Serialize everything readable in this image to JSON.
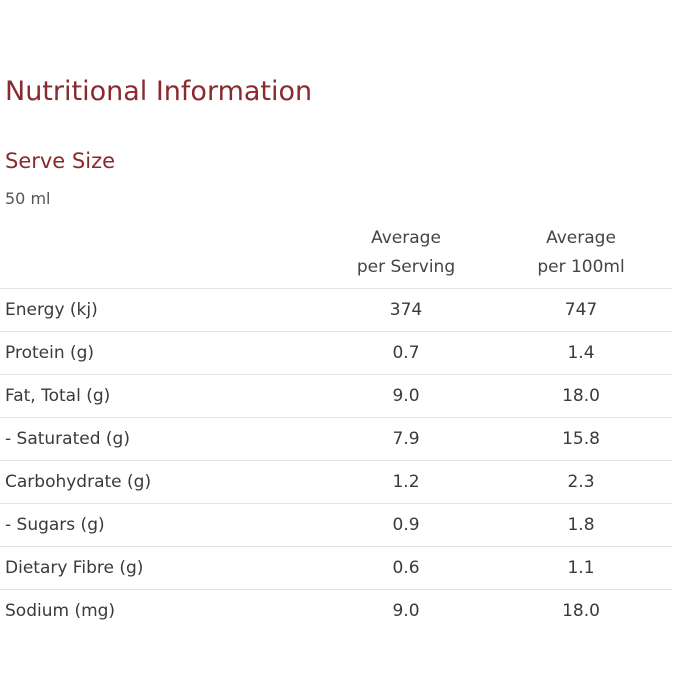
{
  "title": "Nutritional Information",
  "serve": {
    "label": "Serve Size",
    "value": "50 ml"
  },
  "table": {
    "columns": [
      {
        "line1": "Average",
        "line2": "per Serving"
      },
      {
        "line1": "Average",
        "line2": "per 100ml"
      }
    ],
    "rows": [
      {
        "name": "Energy (kj)",
        "per_serving": "374",
        "per_100ml": "747"
      },
      {
        "name": "Protein (g)",
        "per_serving": "0.7",
        "per_100ml": "1.4"
      },
      {
        "name": "Fat, Total (g)",
        "per_serving": "9.0",
        "per_100ml": "18.0"
      },
      {
        "name": "- Saturated (g)",
        "per_serving": "7.9",
        "per_100ml": "15.8"
      },
      {
        "name": "Carbohydrate (g)",
        "per_serving": "1.2",
        "per_100ml": "2.3"
      },
      {
        "name": "- Sugars (g)",
        "per_serving": "0.9",
        "per_100ml": "1.8"
      },
      {
        "name": "Dietary Fibre (g)",
        "per_serving": "0.6",
        "per_100ml": "1.1"
      },
      {
        "name": "Sodium (mg)",
        "per_serving": "9.0",
        "per_100ml": "18.0"
      }
    ]
  },
  "colors": {
    "heading": "#8a2a2e",
    "text": "#3a3a3a",
    "divider": "#e2e2e2"
  }
}
